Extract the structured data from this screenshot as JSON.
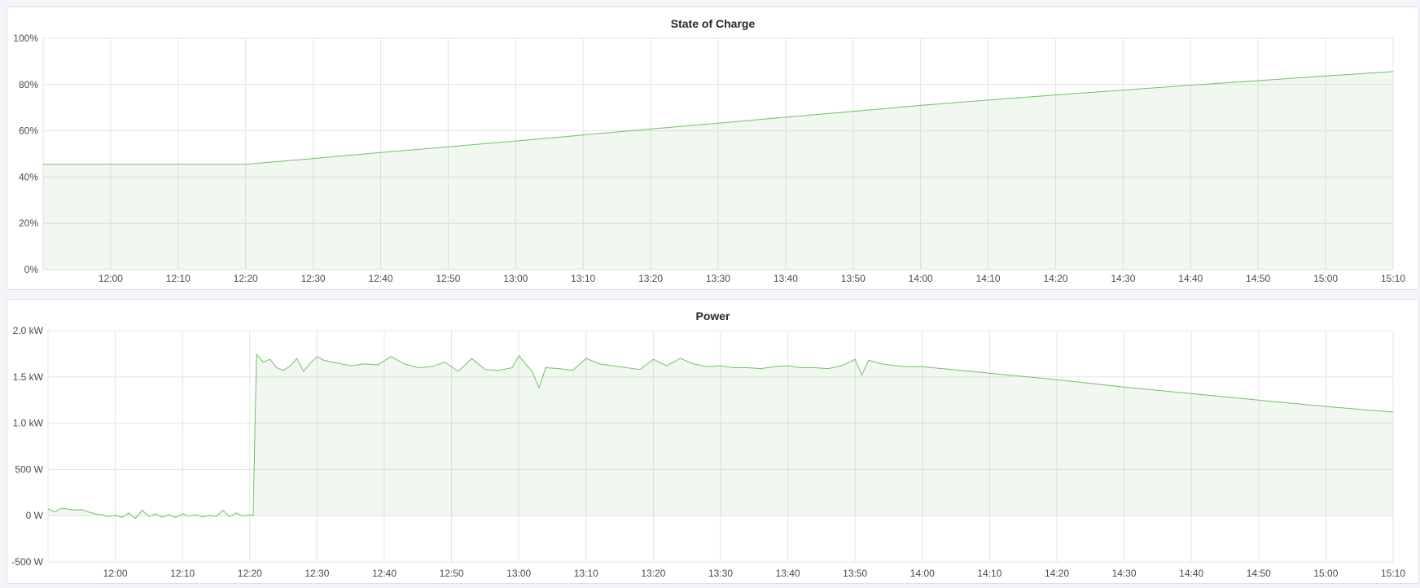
{
  "colors": {
    "line": "#73bf69",
    "fill": "#73bf69",
    "grid": "#e4e4e4"
  },
  "chart_data": [
    {
      "type": "area",
      "title": "State of Charge",
      "xlim": [
        "11:50",
        "15:10"
      ],
      "ylim": [
        0,
        100
      ],
      "yticks": [
        "0%",
        "20%",
        "40%",
        "60%",
        "80%",
        "100%"
      ],
      "ytick_values": [
        0,
        20,
        40,
        60,
        80,
        100
      ],
      "xticks": [
        "12:00",
        "12:10",
        "12:20",
        "12:30",
        "12:40",
        "12:50",
        "13:00",
        "13:10",
        "13:20",
        "13:30",
        "13:40",
        "13:50",
        "14:00",
        "14:10",
        "14:20",
        "14:30",
        "14:40",
        "14:50",
        "15:00",
        "15:10"
      ],
      "grid": true,
      "series": [
        {
          "points": [
            [
              "11:50",
              45.5
            ],
            [
              "12:20",
              45.5
            ],
            [
              "12:30",
              48
            ],
            [
              "12:40",
              50.6
            ],
            [
              "12:50",
              53.1
            ],
            [
              "13:00",
              55.6
            ],
            [
              "13:10",
              58.2
            ],
            [
              "13:20",
              60.8
            ],
            [
              "13:30",
              63.3
            ],
            [
              "13:40",
              65.9
            ],
            [
              "13:50",
              68.4
            ],
            [
              "14:00",
              71
            ],
            [
              "14:10",
              73.3
            ],
            [
              "14:20",
              75.5
            ],
            [
              "14:30",
              77.6
            ],
            [
              "14:40",
              79.7
            ],
            [
              "14:50",
              81.7
            ],
            [
              "15:00",
              83.7
            ],
            [
              "15:10",
              85.6
            ]
          ]
        }
      ]
    },
    {
      "type": "area",
      "title": "Power",
      "xlim": [
        "11:50",
        "15:10"
      ],
      "ylim": [
        -500,
        2000
      ],
      "yticks": [
        "-500 W",
        "0 W",
        "500 W",
        "1.0 kW",
        "1.5 kW",
        "2.0 kW"
      ],
      "ytick_values": [
        -500,
        0,
        500,
        1000,
        1500,
        2000
      ],
      "xticks": [
        "12:00",
        "12:10",
        "12:20",
        "12:30",
        "12:40",
        "12:50",
        "13:00",
        "13:10",
        "13:20",
        "13:30",
        "13:40",
        "13:50",
        "14:00",
        "14:10",
        "14:20",
        "14:30",
        "14:40",
        "14:50",
        "15:00",
        "15:10"
      ],
      "grid": true,
      "series": [
        {
          "points": [
            [
              "11:50",
              75
            ],
            [
              "11:51",
              40
            ],
            [
              "11:52",
              80
            ],
            [
              "11:53",
              70
            ],
            [
              "11:54",
              60
            ],
            [
              "11:55",
              65
            ],
            [
              "11:56",
              40
            ],
            [
              "11:57",
              20
            ],
            [
              "11:58",
              10
            ],
            [
              "11:59",
              -10
            ],
            [
              "12:00",
              5
            ],
            [
              "12:01",
              -20
            ],
            [
              "12:02",
              30
            ],
            [
              "12:03",
              -30
            ],
            [
              "12:04",
              60
            ],
            [
              "12:05",
              -10
            ],
            [
              "12:06",
              20
            ],
            [
              "12:07",
              -15
            ],
            [
              "12:08",
              10
            ],
            [
              "12:09",
              -20
            ],
            [
              "12:10",
              20
            ],
            [
              "12:11",
              -5
            ],
            [
              "12:12",
              10
            ],
            [
              "12:13",
              -15
            ],
            [
              "12:14",
              5
            ],
            [
              "12:15",
              -10
            ],
            [
              "12:16",
              60
            ],
            [
              "12:17",
              -10
            ],
            [
              "12:18",
              30
            ],
            [
              "12:19",
              -5
            ],
            [
              "12:20",
              10
            ],
            [
              "12:20.5",
              0
            ],
            [
              "12:21",
              1740
            ],
            [
              "12:22",
              1660
            ],
            [
              "12:23",
              1690
            ],
            [
              "12:24",
              1600
            ],
            [
              "12:25",
              1570
            ],
            [
              "12:26",
              1620
            ],
            [
              "12:27",
              1700
            ],
            [
              "12:28",
              1560
            ],
            [
              "12:29",
              1650
            ],
            [
              "12:30",
              1720
            ],
            [
              "12:31",
              1680
            ],
            [
              "12:33",
              1650
            ],
            [
              "12:35",
              1620
            ],
            [
              "12:37",
              1640
            ],
            [
              "12:39",
              1630
            ],
            [
              "12:41",
              1720
            ],
            [
              "12:43",
              1640
            ],
            [
              "12:45",
              1600
            ],
            [
              "12:47",
              1610
            ],
            [
              "12:49",
              1660
            ],
            [
              "12:51",
              1560
            ],
            [
              "12:53",
              1700
            ],
            [
              "12:55",
              1580
            ],
            [
              "12:57",
              1570
            ],
            [
              "12:59",
              1600
            ],
            [
              "13:00",
              1730
            ],
            [
              "13:01",
              1640
            ],
            [
              "13:02",
              1560
            ],
            [
              "13:03",
              1380
            ],
            [
              "13:04",
              1600
            ],
            [
              "13:06",
              1590
            ],
            [
              "13:08",
              1570
            ],
            [
              "13:10",
              1700
            ],
            [
              "13:12",
              1640
            ],
            [
              "13:14",
              1620
            ],
            [
              "13:16",
              1600
            ],
            [
              "13:18",
              1580
            ],
            [
              "13:20",
              1690
            ],
            [
              "13:22",
              1620
            ],
            [
              "13:24",
              1700
            ],
            [
              "13:26",
              1640
            ],
            [
              "13:28",
              1610
            ],
            [
              "13:30",
              1620
            ],
            [
              "13:32",
              1600
            ],
            [
              "13:34",
              1600
            ],
            [
              "13:36",
              1590
            ],
            [
              "13:38",
              1610
            ],
            [
              "13:40",
              1620
            ],
            [
              "13:42",
              1600
            ],
            [
              "13:44",
              1600
            ],
            [
              "13:46",
              1590
            ],
            [
              "13:48",
              1620
            ],
            [
              "13:50",
              1690
            ],
            [
              "13:51",
              1520
            ],
            [
              "13:52",
              1680
            ],
            [
              "13:54",
              1640
            ],
            [
              "13:56",
              1620
            ],
            [
              "13:58",
              1610
            ],
            [
              "14:00",
              1610
            ],
            [
              "14:10",
              1540
            ],
            [
              "14:20",
              1470
            ],
            [
              "14:30",
              1390
            ],
            [
              "14:40",
              1320
            ],
            [
              "14:50",
              1250
            ],
            [
              "15:00",
              1180
            ],
            [
              "15:10",
              1120
            ]
          ]
        }
      ]
    }
  ]
}
